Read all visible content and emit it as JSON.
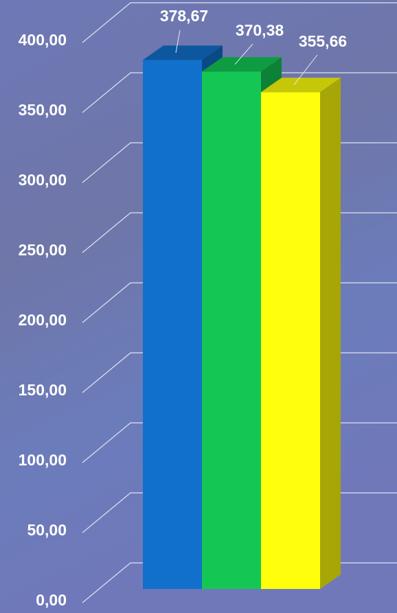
{
  "chart_data": {
    "type": "bar3d",
    "categories": [
      null,
      null,
      null
    ],
    "values": [
      378.67,
      370.38,
      355.66
    ],
    "value_labels": [
      "378,67",
      "370,38",
      "355,66"
    ],
    "colors": [
      "#1170cc",
      "#14c755",
      "#ffff0c"
    ],
    "ylim": [
      0,
      400
    ],
    "yticks": [
      {
        "value": 0,
        "label": "0,00"
      },
      {
        "value": 50,
        "label": "50,00"
      },
      {
        "value": 100,
        "label": "100,00"
      },
      {
        "value": 150,
        "label": "150,00"
      },
      {
        "value": 200,
        "label": "200,00"
      },
      {
        "value": 250,
        "label": "250,00"
      },
      {
        "value": 300,
        "label": "300,00"
      },
      {
        "value": 350,
        "label": "350,00"
      },
      {
        "value": 400,
        "label": "400,00"
      }
    ],
    "grid": true
  }
}
